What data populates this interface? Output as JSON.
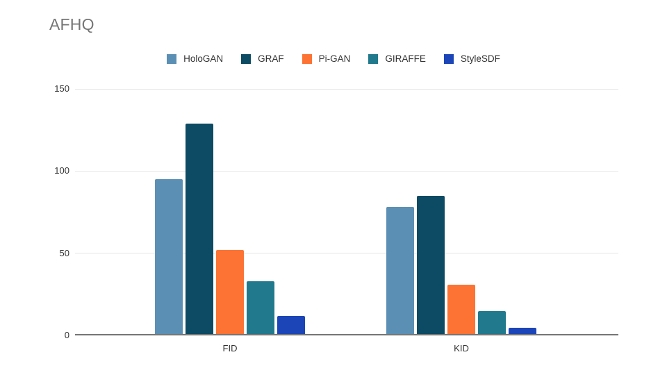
{
  "chart_data": {
    "type": "bar",
    "title": "AFHQ",
    "title_color": "#757575",
    "categories": [
      "FID",
      "KID"
    ],
    "series": [
      {
        "name": "HoloGAN",
        "color": "#5b8fb4",
        "values": [
          95,
          78
        ]
      },
      {
        "name": "GRAF",
        "color": "#0d4a63",
        "values": [
          129,
          85
        ]
      },
      {
        "name": "Pi-GAN",
        "color": "#fc7333",
        "values": [
          52,
          31
        ]
      },
      {
        "name": "GIRAFFE",
        "color": "#20798c",
        "values": [
          33,
          15
        ]
      },
      {
        "name": "StyleSDF",
        "color": "#1c45b8",
        "values": [
          12,
          4.5
        ]
      }
    ],
    "ylim": [
      0,
      150
    ],
    "yticks": [
      0,
      50,
      100,
      150
    ],
    "grid": true,
    "gridline_color": "#e6e6e6",
    "axis_line_color": "#757575",
    "legend_position": "top"
  }
}
